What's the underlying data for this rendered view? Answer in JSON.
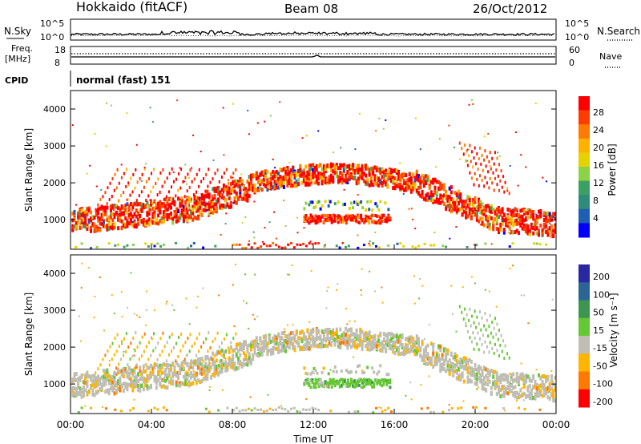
{
  "header": {
    "left": "Hokkaido (fitACF)",
    "center": "Beam 08",
    "right": "26/Oct/2012"
  },
  "nsky_panel": {
    "left_label": "N.Sky",
    "right_label": "N.Search",
    "left_ticks": [
      "10^5",
      "10^0"
    ],
    "right_ticks": [
      "10^5",
      "10^0"
    ]
  },
  "freq_panel": {
    "left_label_1": "Freq.",
    "left_label_2": "[MHz]",
    "right_label": "Nave",
    "left_ticks": [
      "18",
      "8"
    ],
    "right_ticks": [
      "60",
      "0"
    ]
  },
  "cpid_panel": {
    "label": "CPID",
    "text": "normal (fast) 151"
  },
  "chart_data": [
    {
      "type": "heatmap",
      "title": "",
      "xlabel": "",
      "ylabel": "Slant Range [km]",
      "xlim": [
        0,
        24
      ],
      "ylim": [
        200,
        4500
      ],
      "x_ticks": [],
      "y_ticks": [
        "1000",
        "2000",
        "3000",
        "4000"
      ],
      "colorbar": {
        "label": "Power [dB]",
        "ticks": [
          "28",
          "24",
          "20",
          "16",
          "12",
          "8",
          "4"
        ],
        "colors": [
          "#ff0000",
          "#ff3c00",
          "#ff7a00",
          "#ffb000",
          "#e6d200",
          "#8cd246",
          "#3ca064",
          "#2d8c7a",
          "#1e5fb4",
          "#0000ff"
        ]
      },
      "regions": [
        {
          "name": "morning-low-band",
          "t": [
            0,
            6
          ],
          "range_km": [
            700,
            1400
          ],
          "level": "high"
        },
        {
          "name": "afternoon-arc",
          "t": [
            9,
            18
          ],
          "range_km": [
            1800,
            2600
          ],
          "level": "high"
        },
        {
          "name": "midday-band",
          "t": [
            11.5,
            15.5
          ],
          "range_km": [
            900,
            1200
          ],
          "level": "high"
        },
        {
          "name": "near-range-strip",
          "t": [
            8,
            12
          ],
          "range_km": [
            250,
            400
          ],
          "level": "high"
        }
      ]
    },
    {
      "type": "heatmap",
      "title": "",
      "xlabel": "Time UT",
      "ylabel": "Slant Range [km]",
      "xlim": [
        0,
        24
      ],
      "ylim": [
        200,
        4500
      ],
      "x_ticks": [
        "00:00",
        "04:00",
        "08:00",
        "12:00",
        "16:00",
        "20:00",
        "00:00"
      ],
      "y_ticks": [
        "1000",
        "2000",
        "3000",
        "4000"
      ],
      "colorbar": {
        "label": "Velocity [m s⁻¹]",
        "ticks": [
          "200",
          "100",
          "50",
          "15",
          "-15",
          "-50",
          "-100",
          "-200"
        ],
        "colors": [
          "#2828a0",
          "#2d6496",
          "#3c9650",
          "#64c832",
          "#bebeb4",
          "#ffb400",
          "#ff7800",
          "#ff0000"
        ]
      },
      "regions": [
        {
          "name": "ground-scatter-arc",
          "t": [
            8,
            20
          ],
          "range_km": [
            1800,
            2600
          ],
          "velocity": "ground"
        },
        {
          "name": "green-band",
          "t": [
            11.5,
            15
          ],
          "range_km": [
            900,
            1200
          ],
          "velocity": 30
        }
      ]
    }
  ]
}
